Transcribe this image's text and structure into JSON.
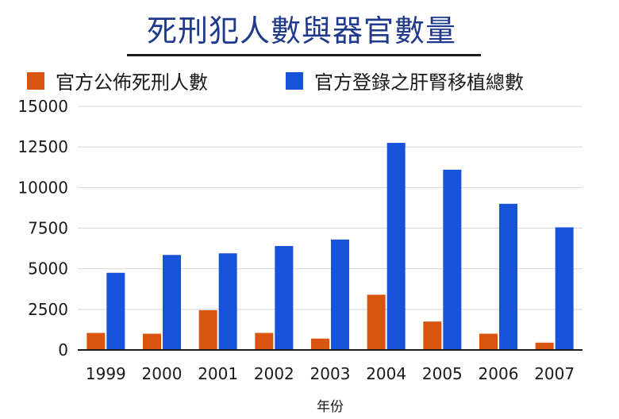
{
  "chart_data": {
    "type": "bar",
    "title": "死刑犯人數與器官數量",
    "xlabel": "年份",
    "ylabel": "",
    "ylim": [
      0,
      15000
    ],
    "yticks": [
      "15000",
      "12500",
      "10000",
      "7500",
      "5000",
      "2500",
      "0"
    ],
    "categories": [
      "1999",
      "2000",
      "2001",
      "2002",
      "2003",
      "2004",
      "2005",
      "2006",
      "2007"
    ],
    "legend_position": "top",
    "grid": true,
    "series": [
      {
        "name": "官方公佈死刑人數",
        "color": "#d9540e",
        "values": [
          1050,
          1000,
          2450,
          1050,
          700,
          3400,
          1750,
          1000,
          450
        ]
      },
      {
        "name": "官方登錄之肝腎移植總數",
        "color": "#1752db",
        "values": [
          4750,
          5850,
          5950,
          6400,
          6800,
          12750,
          11100,
          9000,
          7550
        ]
      }
    ]
  }
}
